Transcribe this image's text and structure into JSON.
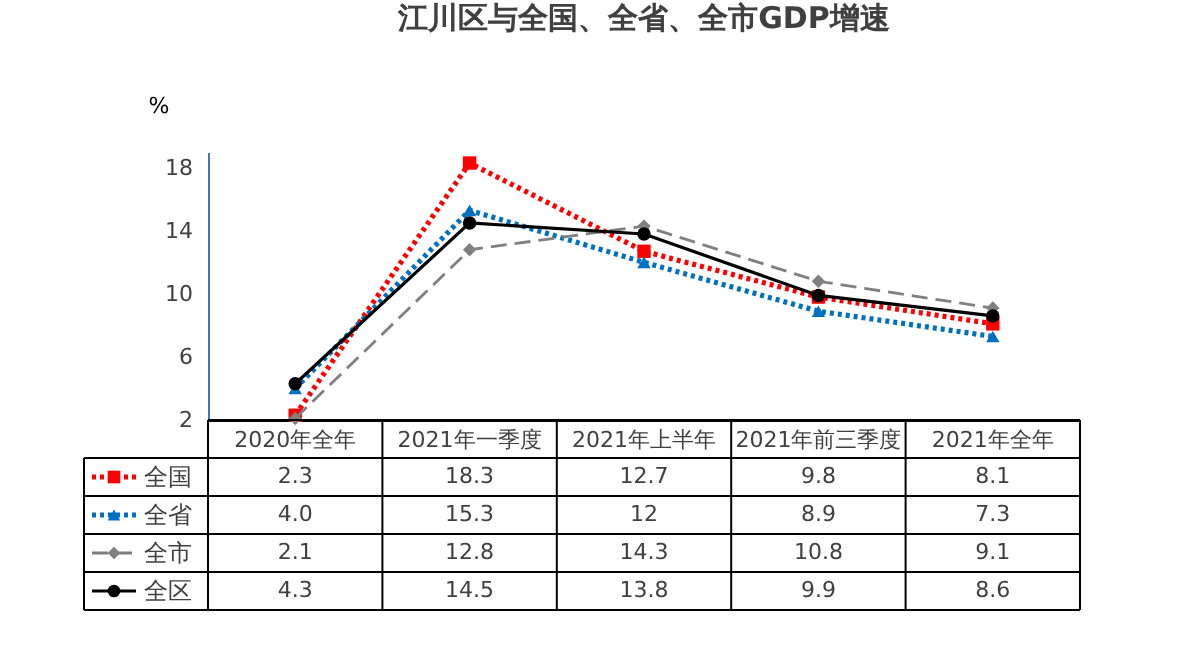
{
  "chart_data": {
    "type": "line",
    "title": "江川区与全国、全省、全市GDP增速",
    "ylabel": "%",
    "categories": [
      "2020年全年",
      "2021年一季度",
      "2021年上半年",
      "2021年前三季度",
      "2021年全年"
    ],
    "ylim": [
      2,
      19
    ],
    "yticks": [
      2,
      6,
      10,
      14,
      18
    ],
    "grid": false,
    "legend": "bottom",
    "series": [
      {
        "name": "全国",
        "color": "#ff0000",
        "marker": "square",
        "line_style": "dotted",
        "values": [
          2.3,
          18.3,
          12.7,
          9.8,
          8.1
        ],
        "value_labels": [
          "2.3",
          "18.3",
          "12.7",
          "9.8",
          "8.1"
        ]
      },
      {
        "name": "全省",
        "color": "#0070c0",
        "marker": "triangle",
        "line_style": "dotted",
        "values": [
          4.0,
          15.3,
          12,
          8.9,
          7.3
        ],
        "value_labels": [
          "4.0",
          "15.3",
          "12",
          "8.9",
          "7.3"
        ]
      },
      {
        "name": "全市",
        "color": "#808080",
        "marker": "diamond",
        "line_style": "dashed",
        "values": [
          2.1,
          12.8,
          14.3,
          10.8,
          9.1
        ],
        "value_labels": [
          "2.1",
          "12.8",
          "14.3",
          "10.8",
          "9.1"
        ]
      },
      {
        "name": "全区",
        "color": "#000000",
        "marker": "circle",
        "line_style": "solid",
        "values": [
          4.3,
          14.5,
          13.8,
          9.9,
          8.6
        ],
        "value_labels": [
          "4.3",
          "14.5",
          "13.8",
          "9.9",
          "8.6"
        ]
      }
    ]
  }
}
